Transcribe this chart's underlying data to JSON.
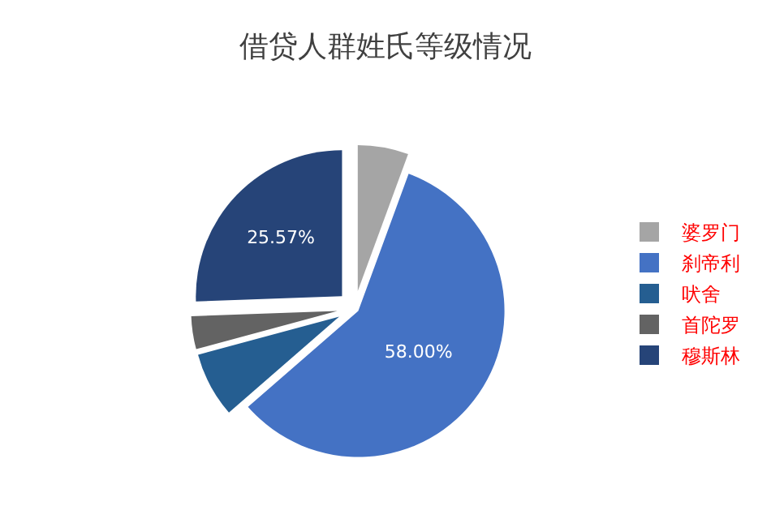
{
  "chart_data": {
    "type": "pie",
    "title": "借贷人群姓氏等级情况",
    "categories": [
      "婆罗门",
      "刹帝利",
      "吠舍",
      "首陀罗",
      "穆斯林"
    ],
    "values": [
      5.6,
      58.0,
      7.2,
      3.63,
      25.57
    ],
    "value_labels": [
      null,
      "58.00%",
      null,
      null,
      "25.57%"
    ],
    "colors": [
      "#a5a5a5",
      "#4472c4",
      "#255e91",
      "#636363",
      "#264478"
    ],
    "legend": "right"
  }
}
